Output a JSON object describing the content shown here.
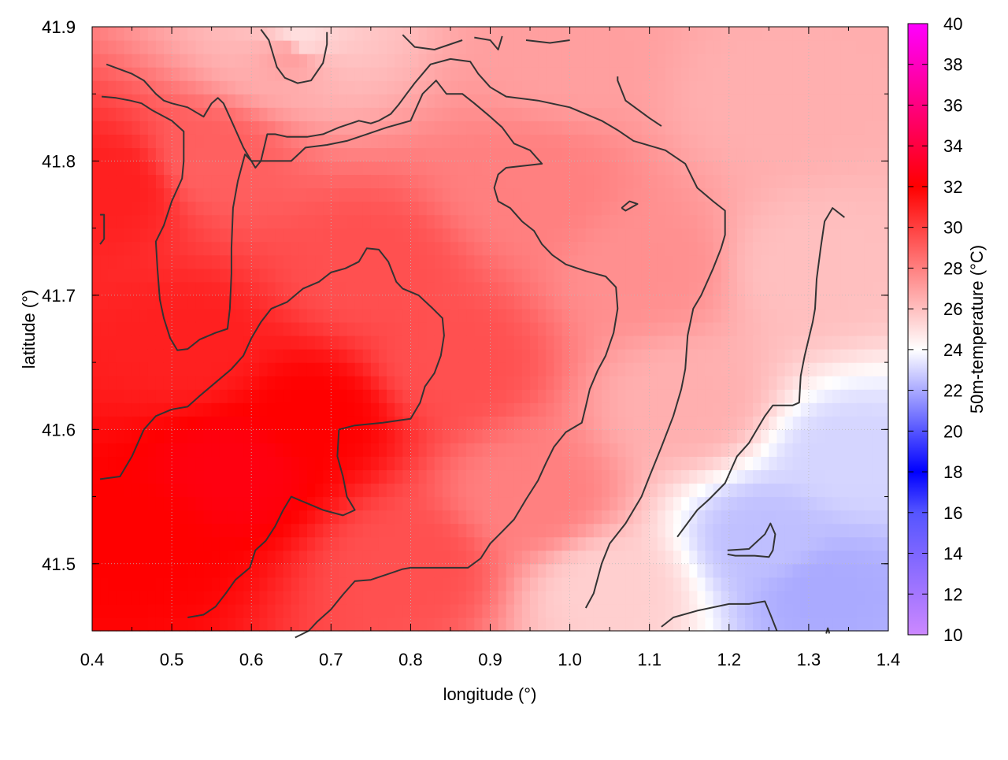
{
  "chart_data": {
    "type": "heatmap",
    "title": "",
    "xlabel": "longitude (°)",
    "ylabel": "latitude (°)",
    "colorbar_label": "50m-temperature (°C)",
    "xlim": [
      0.4,
      1.4
    ],
    "ylim": [
      41.45,
      41.9
    ],
    "zlim": [
      10,
      40
    ],
    "xticks": [
      "0.4",
      "0.5",
      "0.6",
      "0.7",
      "0.8",
      "0.9",
      "1.0",
      "1.1",
      "1.2",
      "1.3",
      "1.4"
    ],
    "yticks": [
      "41.5",
      "41.6",
      "41.7",
      "41.8",
      "41.9"
    ],
    "cticks": [
      "10",
      "12",
      "14",
      "16",
      "18",
      "20",
      "22",
      "24",
      "26",
      "28",
      "30",
      "32",
      "34",
      "36",
      "38",
      "40"
    ],
    "grid": true,
    "colormap": [
      {
        "v": 10,
        "color": "#cc88ff"
      },
      {
        "v": 16,
        "color": "#5555ff"
      },
      {
        "v": 18,
        "color": "#0000ff"
      },
      {
        "v": 24,
        "color": "#ffffff"
      },
      {
        "v": 32,
        "color": "#ff0000"
      },
      {
        "v": 40,
        "color": "#ff00ff"
      }
    ],
    "temperature_anchors": [
      {
        "lon": 0.46,
        "lat": 41.52,
        "t": 32.0
      },
      {
        "lon": 0.58,
        "lat": 41.57,
        "t": 32.5
      },
      {
        "lon": 0.68,
        "lat": 41.61,
        "t": 32.0
      },
      {
        "lon": 0.52,
        "lat": 41.66,
        "t": 31.0
      },
      {
        "lon": 0.43,
        "lat": 41.78,
        "t": 31.0
      },
      {
        "lon": 0.55,
        "lat": 41.8,
        "t": 29.0
      },
      {
        "lon": 0.75,
        "lat": 41.72,
        "t": 29.5
      },
      {
        "lon": 0.85,
        "lat": 41.65,
        "t": 29.5
      },
      {
        "lon": 0.8,
        "lat": 41.5,
        "t": 29.5
      },
      {
        "lon": 0.95,
        "lat": 41.55,
        "t": 28.0
      },
      {
        "lon": 1.05,
        "lat": 41.48,
        "t": 25.5
      },
      {
        "lon": 1.15,
        "lat": 41.62,
        "t": 26.5
      },
      {
        "lon": 1.25,
        "lat": 41.52,
        "t": 22.5
      },
      {
        "lon": 1.32,
        "lat": 41.48,
        "t": 22.0
      },
      {
        "lon": 1.35,
        "lat": 41.58,
        "t": 23.0
      },
      {
        "lon": 1.3,
        "lat": 41.72,
        "t": 26.0
      },
      {
        "lon": 1.25,
        "lat": 41.85,
        "t": 26.5
      },
      {
        "lon": 1.0,
        "lat": 41.88,
        "t": 27.0
      },
      {
        "lon": 0.65,
        "lat": 41.88,
        "t": 27.0
      },
      {
        "lon": 0.66,
        "lat": 41.89,
        "t": 25.0
      },
      {
        "lon": 0.95,
        "lat": 41.78,
        "t": 28.0
      },
      {
        "lon": 1.1,
        "lat": 41.72,
        "t": 27.5
      }
    ],
    "contours": [
      [
        [
          0.418,
          41.872
        ],
        [
          0.45,
          41.865
        ],
        [
          0.465,
          41.86
        ],
        [
          0.48,
          41.85
        ],
        [
          0.49,
          41.845
        ],
        [
          0.5,
          41.843
        ],
        [
          0.52,
          41.84
        ],
        [
          0.54,
          41.833
        ],
        [
          0.55,
          41.843
        ],
        [
          0.558,
          41.847
        ],
        [
          0.565,
          41.843
        ],
        [
          0.575,
          41.83
        ],
        [
          0.59,
          41.81
        ],
        [
          0.605,
          41.795
        ],
        [
          0.612,
          41.8
        ],
        [
          0.62,
          41.82
        ],
        [
          0.63,
          41.82
        ],
        [
          0.645,
          41.818
        ],
        [
          0.67,
          41.818
        ],
        [
          0.69,
          41.82
        ],
        [
          0.71,
          41.825
        ],
        [
          0.735,
          41.83
        ],
        [
          0.75,
          41.828
        ],
        [
          0.76,
          41.83
        ],
        [
          0.775,
          41.835
        ],
        [
          0.785,
          41.842
        ],
        [
          0.795,
          41.85
        ],
        [
          0.805,
          41.858
        ],
        [
          0.815,
          41.865
        ],
        [
          0.825,
          41.872
        ],
        [
          0.85,
          41.876
        ],
        [
          0.875,
          41.874
        ],
        [
          0.885,
          41.865
        ],
        [
          0.9,
          41.855
        ],
        [
          0.92,
          41.848
        ],
        [
          0.96,
          41.845
        ],
        [
          1.0,
          41.84
        ],
        [
          1.04,
          41.83
        ],
        [
          1.06,
          41.823
        ],
        [
          1.08,
          41.815
        ],
        [
          1.12,
          41.808
        ],
        [
          1.145,
          41.798
        ],
        [
          1.16,
          41.78
        ],
        [
          1.18,
          41.77
        ],
        [
          1.195,
          41.763
        ],
        [
          1.195,
          41.745
        ],
        [
          1.19,
          41.735
        ],
        [
          1.18,
          41.72
        ],
        [
          1.165,
          41.7
        ],
        [
          1.155,
          41.69
        ],
        [
          1.148,
          41.67
        ],
        [
          1.145,
          41.645
        ],
        [
          1.14,
          41.63
        ],
        [
          1.13,
          41.61
        ],
        [
          1.115,
          41.587
        ],
        [
          1.1,
          41.565
        ],
        [
          1.09,
          41.55
        ],
        [
          1.07,
          41.53
        ],
        [
          1.05,
          41.515
        ],
        [
          1.04,
          41.5
        ],
        [
          1.03,
          41.478
        ],
        [
          1.02,
          41.467
        ]
      ],
      [
        [
          0.412,
          41.848
        ],
        [
          0.43,
          41.847
        ],
        [
          0.448,
          41.845
        ],
        [
          0.462,
          41.843
        ],
        [
          0.475,
          41.838
        ],
        [
          0.5,
          41.83
        ],
        [
          0.515,
          41.822
        ],
        [
          0.515,
          41.8
        ],
        [
          0.513,
          41.787
        ],
        [
          0.5,
          41.77
        ],
        [
          0.49,
          41.752
        ],
        [
          0.48,
          41.74
        ],
        [
          0.482,
          41.72
        ],
        [
          0.485,
          41.697
        ],
        [
          0.49,
          41.683
        ],
        [
          0.498,
          41.668
        ],
        [
          0.507,
          41.659
        ],
        [
          0.52,
          41.66
        ],
        [
          0.535,
          41.667
        ],
        [
          0.555,
          41.672
        ],
        [
          0.57,
          41.675
        ],
        [
          0.573,
          41.69
        ],
        [
          0.575,
          41.716
        ],
        [
          0.575,
          41.735
        ],
        [
          0.577,
          41.765
        ],
        [
          0.583,
          41.785
        ],
        [
          0.592,
          41.805
        ],
        [
          0.6,
          41.8
        ],
        [
          0.61,
          41.8
        ],
        [
          0.625,
          41.8
        ],
        [
          0.65,
          41.8
        ],
        [
          0.668,
          41.81
        ],
        [
          0.695,
          41.812
        ],
        [
          0.72,
          41.815
        ],
        [
          0.745,
          41.82
        ],
        [
          0.77,
          41.825
        ],
        [
          0.8,
          41.83
        ],
        [
          0.815,
          41.85
        ],
        [
          0.832,
          41.86
        ],
        [
          0.845,
          41.85
        ],
        [
          0.865,
          41.85
        ],
        [
          0.88,
          41.843
        ],
        [
          0.9,
          41.833
        ],
        [
          0.915,
          41.825
        ],
        [
          0.93,
          41.813
        ],
        [
          0.95,
          41.808
        ],
        [
          0.965,
          41.798
        ],
        [
          0.95,
          41.797
        ],
        [
          0.92,
          41.795
        ],
        [
          0.91,
          41.79
        ],
        [
          0.905,
          41.78
        ],
        [
          0.91,
          41.77
        ],
        [
          0.925,
          41.765
        ],
        [
          0.94,
          41.755
        ],
        [
          0.955,
          41.748
        ],
        [
          0.965,
          41.738
        ],
        [
          0.978,
          41.73
        ],
        [
          0.995,
          41.723
        ],
        [
          1.02,
          41.718
        ],
        [
          1.045,
          41.714
        ],
        [
          1.058,
          41.706
        ],
        [
          1.06,
          41.69
        ],
        [
          1.055,
          41.672
        ],
        [
          1.045,
          41.655
        ],
        [
          1.035,
          41.644
        ],
        [
          1.025,
          41.63
        ],
        [
          1.02,
          41.617
        ],
        [
          1.015,
          41.605
        ],
        [
          0.995,
          41.598
        ],
        [
          0.98,
          41.587
        ],
        [
          0.97,
          41.575
        ],
        [
          0.96,
          41.562
        ],
        [
          0.945,
          41.548
        ],
        [
          0.93,
          41.533
        ],
        [
          0.915,
          41.524
        ],
        [
          0.9,
          41.515
        ],
        [
          0.888,
          41.504
        ],
        [
          0.872,
          41.497
        ],
        [
          0.855,
          41.497
        ],
        [
          0.82,
          41.497
        ],
        [
          0.8,
          41.497
        ],
        [
          0.79,
          41.496
        ],
        [
          0.77,
          41.492
        ],
        [
          0.75,
          41.488
        ],
        [
          0.73,
          41.487
        ],
        [
          0.715,
          41.477
        ],
        [
          0.7,
          41.466
        ],
        [
          0.683,
          41.457
        ],
        [
          0.672,
          41.45
        ],
        [
          0.655,
          41.445
        ]
      ],
      [
        [
          0.41,
          41.563
        ],
        [
          0.435,
          41.565
        ],
        [
          0.45,
          41.58
        ],
        [
          0.465,
          41.6
        ],
        [
          0.48,
          41.61
        ],
        [
          0.5,
          41.615
        ],
        [
          0.52,
          41.617
        ],
        [
          0.535,
          41.625
        ],
        [
          0.555,
          41.635
        ],
        [
          0.575,
          41.645
        ],
        [
          0.59,
          41.655
        ],
        [
          0.6,
          41.668
        ],
        [
          0.612,
          41.68
        ],
        [
          0.625,
          41.69
        ],
        [
          0.645,
          41.695
        ],
        [
          0.665,
          41.705
        ],
        [
          0.685,
          41.71
        ],
        [
          0.7,
          41.717
        ],
        [
          0.718,
          41.72
        ],
        [
          0.735,
          41.725
        ],
        [
          0.745,
          41.735
        ],
        [
          0.76,
          41.734
        ],
        [
          0.772,
          41.725
        ],
        [
          0.782,
          41.71
        ],
        [
          0.79,
          41.705
        ],
        [
          0.81,
          41.7
        ],
        [
          0.828,
          41.69
        ],
        [
          0.84,
          41.683
        ],
        [
          0.842,
          41.67
        ],
        [
          0.838,
          41.655
        ],
        [
          0.83,
          41.642
        ],
        [
          0.818,
          41.632
        ],
        [
          0.812,
          41.62
        ],
        [
          0.8,
          41.608
        ],
        [
          0.788,
          41.607
        ],
        [
          0.765,
          41.605
        ],
        [
          0.73,
          41.603
        ],
        [
          0.71,
          41.6
        ],
        [
          0.708,
          41.58
        ],
        [
          0.715,
          41.565
        ],
        [
          0.72,
          41.55
        ],
        [
          0.73,
          41.54
        ],
        [
          0.715,
          41.536
        ],
        [
          0.69,
          41.54
        ],
        [
          0.67,
          41.545
        ],
        [
          0.65,
          41.55
        ],
        [
          0.64,
          41.54
        ],
        [
          0.63,
          41.528
        ],
        [
          0.618,
          41.517
        ],
        [
          0.605,
          41.51
        ],
        [
          0.598,
          41.497
        ],
        [
          0.58,
          41.488
        ],
        [
          0.568,
          41.478
        ],
        [
          0.555,
          41.468
        ],
        [
          0.54,
          41.462
        ],
        [
          0.52,
          41.46
        ]
      ],
      [
        [
          0.41,
          41.76
        ],
        [
          0.415,
          41.76
        ],
        [
          0.415,
          41.742
        ],
        [
          0.41,
          41.738
        ]
      ],
      [
        [
          0.612,
          41.898
        ],
        [
          0.622,
          41.89
        ],
        [
          0.632,
          41.87
        ],
        [
          0.642,
          41.862
        ],
        [
          0.658,
          41.858
        ],
        [
          0.675,
          41.86
        ],
        [
          0.69,
          41.873
        ],
        [
          0.695,
          41.887
        ],
        [
          0.695,
          41.896
        ]
      ],
      [
        [
          0.79,
          41.894
        ],
        [
          0.805,
          41.885
        ],
        [
          0.83,
          41.883
        ],
        [
          0.865,
          41.89
        ]
      ],
      [
        [
          0.88,
          41.892
        ],
        [
          0.9,
          41.89
        ],
        [
          0.91,
          41.883
        ],
        [
          0.915,
          41.893
        ]
      ],
      [
        [
          0.945,
          41.89
        ],
        [
          0.975,
          41.888
        ],
        [
          1.0,
          41.89
        ]
      ],
      [
        [
          1.06,
          41.863
        ],
        [
          1.06,
          41.86
        ],
        [
          1.07,
          41.845
        ],
        [
          1.1,
          41.832
        ],
        [
          1.115,
          41.826
        ]
      ],
      [
        [
          1.065,
          41.765
        ],
        [
          1.075,
          41.77
        ],
        [
          1.085,
          41.768
        ],
        [
          1.07,
          41.763
        ],
        [
          1.065,
          41.765
        ]
      ],
      [
        [
          1.115,
          41.453
        ],
        [
          1.13,
          41.46
        ],
        [
          1.16,
          41.465
        ],
        [
          1.2,
          41.47
        ],
        [
          1.225,
          41.47
        ],
        [
          1.245,
          41.472
        ],
        [
          1.252,
          41.462
        ],
        [
          1.26,
          41.45
        ]
      ],
      [
        [
          1.198,
          41.51
        ],
        [
          1.225,
          41.511
        ],
        [
          1.245,
          41.522
        ],
        [
          1.252,
          41.53
        ],
        [
          1.258,
          41.522
        ],
        [
          1.255,
          41.51
        ],
        [
          1.25,
          41.505
        ],
        [
          1.232,
          41.506
        ],
        [
          1.208,
          41.506
        ],
        [
          1.198,
          41.507
        ]
      ],
      [
        [
          1.322,
          41.448
        ],
        [
          1.324,
          41.452
        ],
        [
          1.326,
          41.448
        ]
      ],
      [
        [
          1.345,
          41.758
        ],
        [
          1.33,
          41.765
        ],
        [
          1.32,
          41.755
        ],
        [
          1.315,
          41.735
        ],
        [
          1.31,
          41.712
        ],
        [
          1.308,
          41.69
        ],
        [
          1.305,
          41.68
        ],
        [
          1.295,
          41.655
        ],
        [
          1.29,
          41.64
        ],
        [
          1.288,
          41.62
        ],
        [
          1.28,
          41.618
        ],
        [
          1.255,
          41.618
        ],
        [
          1.245,
          41.61
        ],
        [
          1.235,
          41.6
        ],
        [
          1.225,
          41.59
        ],
        [
          1.21,
          41.58
        ],
        [
          1.195,
          41.56
        ],
        [
          1.175,
          41.548
        ],
        [
          1.16,
          41.54
        ],
        [
          1.135,
          41.52
        ]
      ]
    ]
  }
}
